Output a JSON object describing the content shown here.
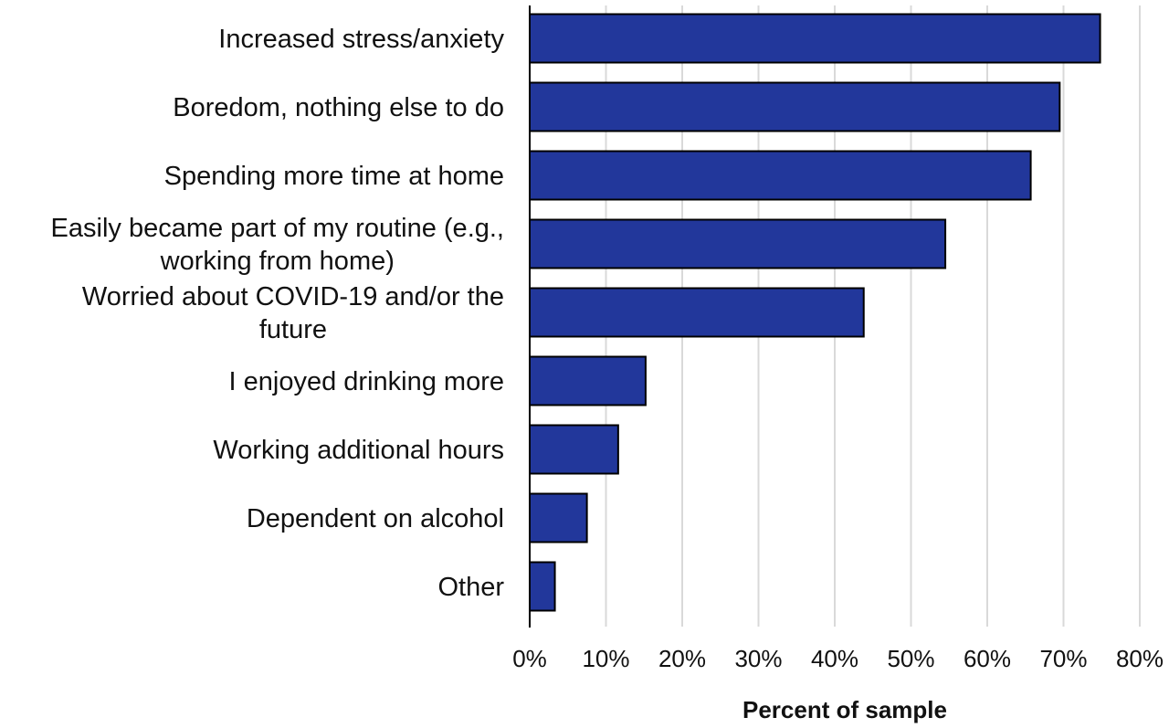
{
  "chart_data": {
    "type": "bar",
    "orientation": "horizontal",
    "categories": [
      [
        "Increased stress/anxiety"
      ],
      [
        "Boredom, nothing else to do"
      ],
      [
        "Spending more time at home"
      ],
      [
        "Easily became part of my routine (e.g.,",
        "working from home)"
      ],
      [
        "Worried about COVID-19 and/or the",
        "future"
      ],
      [
        "I enjoyed drinking more"
      ],
      [
        "Working additional hours"
      ],
      [
        "Dependent on alcohol"
      ],
      [
        "Other"
      ]
    ],
    "values": [
      74.8,
      69.5,
      65.7,
      54.5,
      43.8,
      15.2,
      11.6,
      7.5,
      3.3
    ],
    "xlim": [
      0,
      80
    ],
    "ticks": [
      0,
      10,
      20,
      30,
      40,
      50,
      60,
      70,
      80
    ],
    "tick_labels": [
      "0%",
      "10%",
      "20%",
      "30%",
      "40%",
      "50%",
      "60%",
      "70%",
      "80%"
    ],
    "xlabel": "Percent of sample",
    "ylabel": "",
    "title": "",
    "grid": "vertical",
    "legend": "none",
    "colors": {
      "bar_fill": "#22379b",
      "bar_stroke": "#000000",
      "grid": "#d9d9d9",
      "axis": "#000000"
    }
  }
}
